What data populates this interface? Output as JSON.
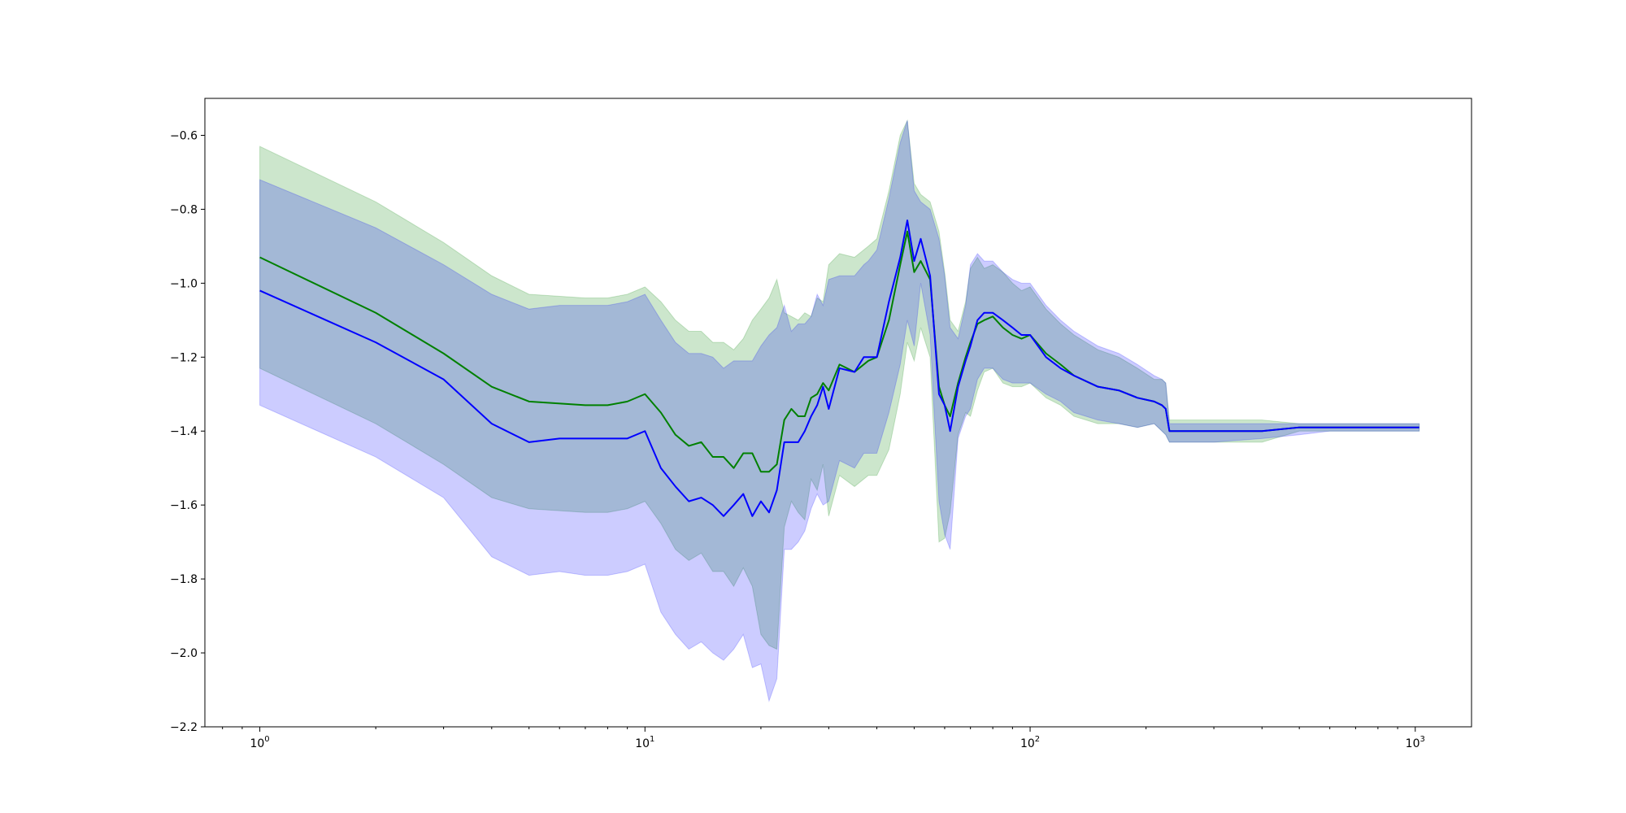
{
  "chart_data": {
    "type": "line",
    "title": "",
    "xlabel": "",
    "ylabel": "",
    "xscale": "log",
    "xlim": [
      0.72,
      1400
    ],
    "ylim": [
      -2.2,
      -0.5
    ],
    "grid": false,
    "legend": "none",
    "x_ticks": [
      {
        "value": 1,
        "base": "10",
        "exp": "0"
      },
      {
        "value": 10,
        "base": "10",
        "exp": "1"
      },
      {
        "value": 100,
        "base": "10",
        "exp": "2"
      },
      {
        "value": 1000,
        "base": "10",
        "exp": "3"
      }
    ],
    "y_ticks": [
      {
        "value": -0.6,
        "label": "−0.6"
      },
      {
        "value": -0.8,
        "label": "−0.8"
      },
      {
        "value": -1.0,
        "label": "−1.0"
      },
      {
        "value": -1.2,
        "label": "−1.2"
      },
      {
        "value": -1.4,
        "label": "−1.4"
      },
      {
        "value": -1.6,
        "label": "−1.6"
      },
      {
        "value": -1.8,
        "label": "−1.8"
      },
      {
        "value": -2.0,
        "label": "−2.0"
      },
      {
        "value": -2.2,
        "label": "−2.2"
      }
    ],
    "series": [
      {
        "color": "#008000",
        "band_color": "#008000",
        "band_opacity": 0.2,
        "x": [
          1,
          2,
          3,
          4,
          5,
          7,
          8,
          9,
          10,
          11,
          12,
          13,
          14,
          15,
          16,
          17,
          18,
          19,
          20,
          21,
          22,
          23,
          24,
          25,
          26,
          27,
          28,
          29,
          30,
          32,
          35,
          38,
          40,
          43,
          46,
          48,
          50,
          52,
          55,
          58,
          60,
          62,
          65,
          68,
          70,
          73,
          76,
          80,
          85,
          90,
          95,
          100,
          110,
          120,
          130,
          150,
          170,
          190,
          210,
          220,
          225,
          230,
          300,
          400,
          500,
          600,
          700,
          800,
          900,
          1024
        ],
        "mean": [
          -0.93,
          -1.08,
          -1.19,
          -1.28,
          -1.32,
          -1.33,
          -1.33,
          -1.32,
          -1.3,
          -1.35,
          -1.41,
          -1.44,
          -1.43,
          -1.47,
          -1.47,
          -1.5,
          -1.46,
          -1.46,
          -1.51,
          -1.51,
          -1.49,
          -1.37,
          -1.34,
          -1.36,
          -1.36,
          -1.31,
          -1.3,
          -1.27,
          -1.29,
          -1.22,
          -1.24,
          -1.21,
          -1.2,
          -1.1,
          -0.95,
          -0.86,
          -0.97,
          -0.94,
          -0.99,
          -1.28,
          -1.33,
          -1.36,
          -1.27,
          -1.2,
          -1.16,
          -1.11,
          -1.1,
          -1.09,
          -1.12,
          -1.14,
          -1.15,
          -1.14,
          -1.19,
          -1.22,
          -1.25,
          -1.28,
          -1.29,
          -1.31,
          -1.32,
          -1.33,
          -1.34,
          -1.4,
          -1.4,
          -1.4,
          -1.39,
          -1.39,
          -1.39,
          -1.39,
          -1.39,
          -1.39
        ],
        "upper": [
          -0.63,
          -0.78,
          -0.89,
          -0.98,
          -1.03,
          -1.04,
          -1.04,
          -1.03,
          -1.01,
          -1.05,
          -1.1,
          -1.13,
          -1.13,
          -1.16,
          -1.16,
          -1.18,
          -1.15,
          -1.1,
          -1.07,
          -1.04,
          -0.99,
          -1.08,
          -1.09,
          -1.1,
          -1.08,
          -1.09,
          -1.04,
          -1.05,
          -0.95,
          -0.92,
          -0.93,
          -0.9,
          -0.88,
          -0.75,
          -0.6,
          -0.56,
          -0.73,
          -0.76,
          -0.78,
          -0.86,
          -0.97,
          -1.1,
          -1.13,
          -1.05,
          -0.96,
          -0.93,
          -0.96,
          -0.95,
          -0.97,
          -1.0,
          -1.02,
          -1.01,
          -1.07,
          -1.11,
          -1.14,
          -1.18,
          -1.2,
          -1.23,
          -1.26,
          -1.26,
          -1.27,
          -1.37,
          -1.37,
          -1.37,
          -1.38,
          -1.38,
          -1.38,
          -1.38,
          -1.38,
          -1.38
        ],
        "lower": [
          -1.23,
          -1.38,
          -1.49,
          -1.58,
          -1.61,
          -1.62,
          -1.62,
          -1.61,
          -1.59,
          -1.65,
          -1.72,
          -1.75,
          -1.73,
          -1.78,
          -1.78,
          -1.82,
          -1.77,
          -1.82,
          -1.95,
          -1.98,
          -1.99,
          -1.66,
          -1.59,
          -1.62,
          -1.64,
          -1.53,
          -1.56,
          -1.49,
          -1.63,
          -1.52,
          -1.55,
          -1.52,
          -1.52,
          -1.45,
          -1.3,
          -1.16,
          -1.21,
          -1.12,
          -1.2,
          -1.7,
          -1.69,
          -1.62,
          -1.41,
          -1.35,
          -1.36,
          -1.29,
          -1.24,
          -1.23,
          -1.27,
          -1.28,
          -1.28,
          -1.27,
          -1.31,
          -1.33,
          -1.36,
          -1.38,
          -1.38,
          -1.39,
          -1.38,
          -1.4,
          -1.41,
          -1.43,
          -1.43,
          -1.43,
          -1.4,
          -1.4,
          -1.4,
          -1.4,
          -1.4,
          -1.4
        ]
      },
      {
        "color": "#0000ff",
        "band_color": "#0000ff",
        "band_opacity": 0.2,
        "x": [
          1,
          2,
          3,
          4,
          5,
          6,
          7,
          8,
          9,
          10,
          11,
          12,
          13,
          14,
          15,
          16,
          17,
          18,
          19,
          20,
          21,
          22,
          23,
          24,
          25,
          26,
          27,
          28,
          29,
          30,
          32,
          35,
          37,
          38,
          40,
          43,
          46,
          48,
          50,
          52,
          55,
          58,
          60,
          62,
          65,
          68,
          70,
          73,
          76,
          80,
          85,
          90,
          95,
          100,
          110,
          120,
          130,
          150,
          170,
          190,
          210,
          220,
          225,
          230,
          300,
          400,
          500,
          600,
          700,
          800,
          900,
          1024
        ],
        "mean": [
          -1.02,
          -1.16,
          -1.26,
          -1.38,
          -1.43,
          -1.42,
          -1.42,
          -1.42,
          -1.42,
          -1.4,
          -1.5,
          -1.55,
          -1.59,
          -1.58,
          -1.6,
          -1.63,
          -1.6,
          -1.57,
          -1.63,
          -1.59,
          -1.62,
          -1.56,
          -1.43,
          -1.43,
          -1.43,
          -1.4,
          -1.36,
          -1.33,
          -1.28,
          -1.34,
          -1.23,
          -1.24,
          -1.2,
          -1.2,
          -1.2,
          -1.05,
          -0.93,
          -0.83,
          -0.94,
          -0.88,
          -0.98,
          -1.3,
          -1.33,
          -1.4,
          -1.28,
          -1.21,
          -1.17,
          -1.1,
          -1.08,
          -1.08,
          -1.1,
          -1.12,
          -1.14,
          -1.14,
          -1.2,
          -1.23,
          -1.25,
          -1.28,
          -1.29,
          -1.31,
          -1.32,
          -1.33,
          -1.34,
          -1.4,
          -1.4,
          -1.4,
          -1.39,
          -1.39,
          -1.39,
          -1.39,
          -1.39,
          -1.39
        ],
        "upper": [
          -0.72,
          -0.85,
          -0.95,
          -1.03,
          -1.07,
          -1.06,
          -1.06,
          -1.06,
          -1.05,
          -1.03,
          -1.1,
          -1.16,
          -1.19,
          -1.19,
          -1.2,
          -1.23,
          -1.21,
          -1.21,
          -1.21,
          -1.17,
          -1.14,
          -1.12,
          -1.06,
          -1.13,
          -1.11,
          -1.11,
          -1.09,
          -1.03,
          -1.06,
          -0.99,
          -0.98,
          -0.98,
          -0.95,
          -0.94,
          -0.91,
          -0.77,
          -0.62,
          -0.56,
          -0.75,
          -0.78,
          -0.8,
          -0.88,
          -0.98,
          -1.12,
          -1.15,
          -1.06,
          -0.95,
          -0.92,
          -0.94,
          -0.94,
          -0.97,
          -0.99,
          -1.0,
          -1.0,
          -1.06,
          -1.1,
          -1.13,
          -1.17,
          -1.19,
          -1.22,
          -1.25,
          -1.26,
          -1.27,
          -1.38,
          -1.38,
          -1.38,
          -1.38,
          -1.38,
          -1.38,
          -1.38,
          -1.38,
          -1.38
        ],
        "lower": [
          -1.33,
          -1.47,
          -1.58,
          -1.74,
          -1.79,
          -1.78,
          -1.79,
          -1.79,
          -1.78,
          -1.76,
          -1.89,
          -1.95,
          -1.99,
          -1.97,
          -2.0,
          -2.02,
          -1.99,
          -1.95,
          -2.04,
          -2.03,
          -2.13,
          -2.07,
          -1.72,
          -1.72,
          -1.7,
          -1.67,
          -1.61,
          -1.57,
          -1.6,
          -1.59,
          -1.48,
          -1.5,
          -1.46,
          -1.46,
          -1.46,
          -1.35,
          -1.22,
          -1.1,
          -1.17,
          -1.0,
          -1.14,
          -1.59,
          -1.68,
          -1.72,
          -1.42,
          -1.36,
          -1.34,
          -1.26,
          -1.23,
          -1.23,
          -1.26,
          -1.27,
          -1.27,
          -1.27,
          -1.3,
          -1.32,
          -1.35,
          -1.37,
          -1.38,
          -1.39,
          -1.38,
          -1.4,
          -1.41,
          -1.43,
          -1.43,
          -1.42,
          -1.41,
          -1.4,
          -1.4,
          -1.4,
          -1.4,
          -1.4
        ]
      }
    ]
  }
}
